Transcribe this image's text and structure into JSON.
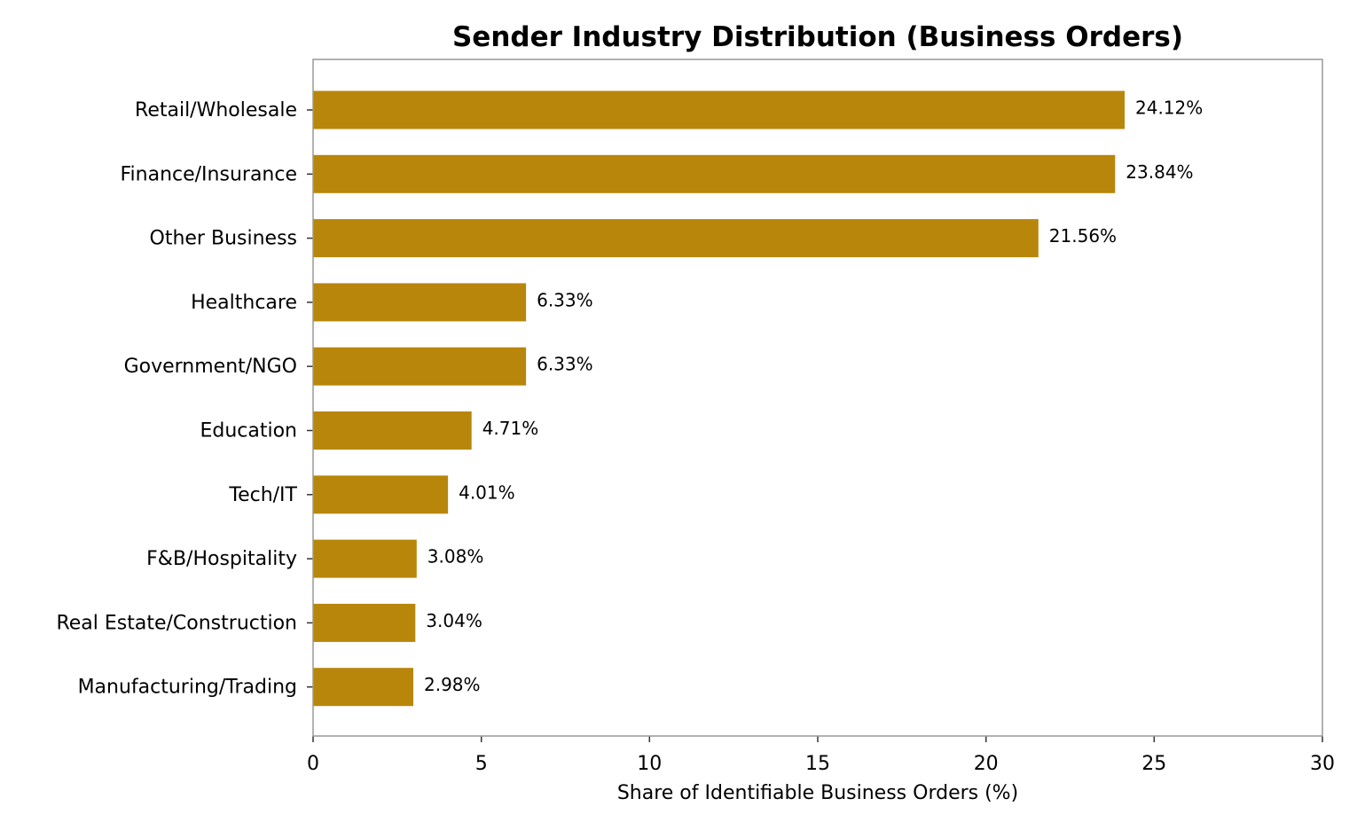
{
  "chart_data": {
    "type": "bar",
    "orientation": "horizontal",
    "title": "Sender Industry Distribution (Business Orders)",
    "xlabel": "Share of Identifiable Business Orders (%)",
    "ylabel": "",
    "xlim": [
      0,
      30
    ],
    "xticks": [
      0,
      5,
      10,
      15,
      20,
      25,
      30
    ],
    "grid": false,
    "legend": "none",
    "bar_color": "#B8860B",
    "categories": [
      "Retail/Wholesale",
      "Finance/Insurance",
      "Other Business",
      "Healthcare",
      "Government/NGO",
      "Education",
      "Tech/IT",
      "F&B/Hospitality",
      "Real Estate/Construction",
      "Manufacturing/Trading"
    ],
    "values": [
      24.12,
      23.84,
      21.56,
      6.33,
      6.33,
      4.71,
      4.01,
      3.08,
      3.04,
      2.98
    ],
    "value_labels": [
      "24.12%",
      "23.84%",
      "21.56%",
      "6.33%",
      "6.33%",
      "4.71%",
      "4.01%",
      "3.08%",
      "3.04%",
      "2.98%"
    ]
  }
}
